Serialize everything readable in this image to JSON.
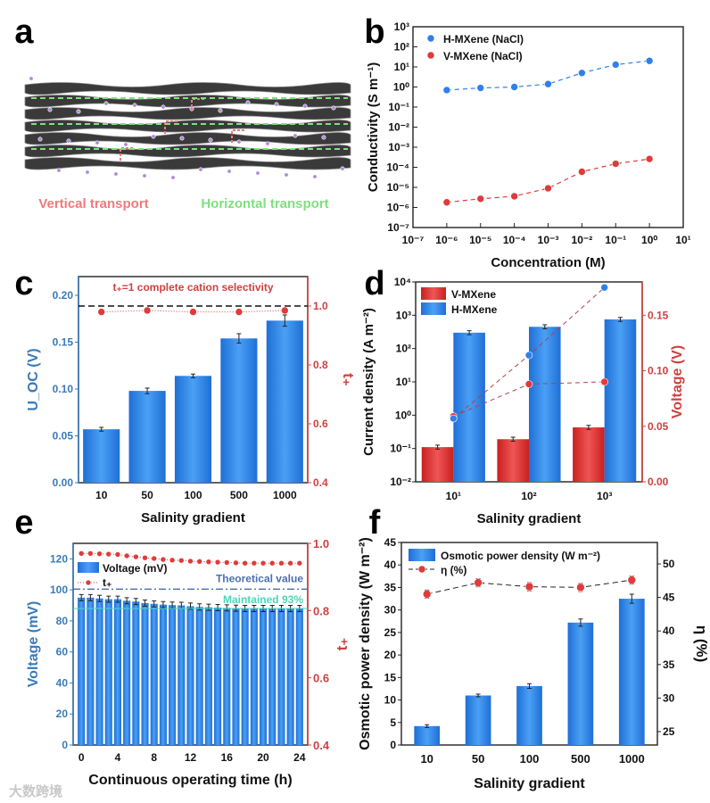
{
  "panel_labels": [
    "a",
    "b",
    "c",
    "d",
    "e",
    "f"
  ],
  "colors": {
    "blue": "#2f80e8",
    "red": "#e03a3a",
    "axis_blue": "#3a7ab8",
    "axis_red": "#d04040",
    "vertical": "#ef7a7a",
    "horizontal": "#7ee07e",
    "theory": "#4a6fb0",
    "maintained": "#4fd6b8"
  },
  "watermark": "大数跨境",
  "chart_data": [
    {
      "id": "a",
      "type": "illustration",
      "labels": [
        "Vertical transport",
        "Horizontal transport"
      ]
    },
    {
      "id": "b",
      "type": "scatter",
      "xlabel": "Concentration (M)",
      "ylabel": "Conductivity (S m⁻¹)",
      "xscale": "log",
      "yscale": "log",
      "xlim": [
        -7,
        1
      ],
      "ylim": [
        -7,
        3
      ],
      "xticks": [
        "10⁻⁷",
        "10⁻⁶",
        "10⁻⁵",
        "10⁻⁴",
        "10⁻³",
        "10⁻²",
        "10⁻¹",
        "10⁰",
        "10¹"
      ],
      "yticks": [
        "10⁻⁷",
        "10⁻⁶",
        "10⁻⁵",
        "10⁻⁴",
        "10⁻³",
        "10⁻²",
        "10⁻¹",
        "10⁰",
        "10¹",
        "10²",
        "10³"
      ],
      "x": [
        1e-06,
        1e-05,
        0.0001,
        0.001,
        0.01,
        0.1,
        1
      ],
      "legend": "top-left",
      "series": [
        {
          "name": "H-MXene (NaCl)",
          "values": [
            0.7,
            0.9,
            1.0,
            1.4,
            5,
            13,
            20
          ]
        },
        {
          "name": "V-MXene (NaCl)",
          "values": [
            1.8e-06,
            2.7e-06,
            3.6e-06,
            9e-06,
            6e-05,
            0.00015,
            0.00026
          ]
        }
      ]
    },
    {
      "id": "c",
      "type": "bar",
      "categories": [
        "10",
        "50",
        "100",
        "500",
        "1000"
      ],
      "xlabel": "Salinity gradient",
      "ylabel": "U_OC (V)",
      "ylabel2": "t₊",
      "ylim": [
        0,
        0.22
      ],
      "y2lim": [
        0.4,
        1.1
      ],
      "yticks": [
        "0.00",
        "0.05",
        "0.10",
        "0.15",
        "0.20"
      ],
      "y2ticks": [
        "0.4",
        "0.6",
        "0.8",
        "1.0"
      ],
      "values": [
        0.057,
        0.098,
        0.114,
        0.154,
        0.173
      ],
      "errors": [
        0.002,
        0.003,
        0.002,
        0.005,
        0.006
      ],
      "t_plus": [
        0.98,
        0.985,
        0.98,
        0.98,
        0.985
      ],
      "reference": 1.0,
      "annotation": "t₊=1 complete cation selectivity"
    },
    {
      "id": "d",
      "type": "bar",
      "categories": [
        "10¹",
        "10²",
        "10³"
      ],
      "xlabel": "Salinity gradient",
      "ylabel": "Current density (A m⁻²)",
      "ylabel2": "Voltage (V)",
      "yscale": "log",
      "ylim": [
        -2,
        4
      ],
      "y2lim": [
        0,
        0.18
      ],
      "yticks": [
        "10⁻²",
        "10⁻¹",
        "10⁰",
        "10¹",
        "10²",
        "10³",
        "10⁴"
      ],
      "y2ticks": [
        "0.00",
        "0.05",
        "0.10",
        "0.15"
      ],
      "legend": "top-left",
      "series": [
        {
          "name": "V-MXene",
          "values": [
            0.11,
            0.19,
            0.43
          ],
          "voltage": [
            0.059,
            0.088,
            0.09
          ]
        },
        {
          "name": "H-MXene",
          "values": [
            300,
            450,
            750
          ],
          "voltage": [
            0.057,
            0.114,
            0.175
          ]
        }
      ]
    },
    {
      "id": "e",
      "type": "bar",
      "xlabel": "Continuous operating time (h)",
      "ylabel": "Voltage (mV)",
      "ylabel2": "t₊",
      "ylim": [
        0,
        130
      ],
      "y2lim": [
        0.4,
        1.0
      ],
      "xticks": [
        "0",
        "4",
        "8",
        "12",
        "16",
        "20",
        "24"
      ],
      "yticks": [
        "0",
        "20",
        "40",
        "60",
        "80",
        "100",
        "120"
      ],
      "y2ticks": [
        "0.4",
        "0.6",
        "0.8",
        "1.0"
      ],
      "x": [
        0,
        1,
        2,
        3,
        4,
        5,
        6,
        7,
        8,
        9,
        10,
        11,
        12,
        13,
        14,
        15,
        16,
        17,
        18,
        19,
        20,
        21,
        22,
        23,
        24
      ],
      "values": [
        95,
        95,
        94.5,
        94,
        94,
        93,
        92.5,
        91.5,
        91,
        90.5,
        90.2,
        90,
        89.5,
        89,
        88.8,
        88.6,
        88.4,
        88.2,
        88,
        88,
        88,
        88,
        88,
        88,
        88
      ],
      "t_plus": [
        0.97,
        0.97,
        0.969,
        0.968,
        0.967,
        0.963,
        0.96,
        0.957,
        0.955,
        0.952,
        0.95,
        0.949,
        0.947,
        0.946,
        0.945,
        0.944,
        0.943,
        0.942,
        0.941,
        0.941,
        0.941,
        0.941,
        0.941,
        0.941,
        0.941
      ],
      "legend": [
        "Voltage (mV)",
        "t₊"
      ],
      "theoretical": 100.5,
      "theoretical_label": "Theoretical value",
      "maintained": 88,
      "maintained_label": "Maintained 93%"
    },
    {
      "id": "f",
      "type": "bar",
      "categories": [
        "10",
        "50",
        "100",
        "500",
        "1000"
      ],
      "xlabel": "Salinity gradient",
      "ylabel": "Osmotic power density (W m⁻²)",
      "ylabel2": "η (%)",
      "ylim": [
        0,
        45
      ],
      "y2lim": [
        23,
        53.2
      ],
      "yticks": [
        "0",
        "5",
        "10",
        "15",
        "20",
        "25",
        "30",
        "35",
        "40",
        "45"
      ],
      "y2ticks": [
        "25",
        "30",
        "35",
        "40",
        "45",
        "50"
      ],
      "values": [
        4.2,
        11,
        13.1,
        27.2,
        32.5
      ],
      "errors": [
        0.3,
        0.3,
        0.5,
        0.8,
        1.0
      ],
      "eta": [
        45.5,
        47.2,
        46.6,
        46.5,
        47.6
      ],
      "legend": [
        "Osmotic power density (W m⁻²)",
        "η (%)"
      ]
    }
  ]
}
